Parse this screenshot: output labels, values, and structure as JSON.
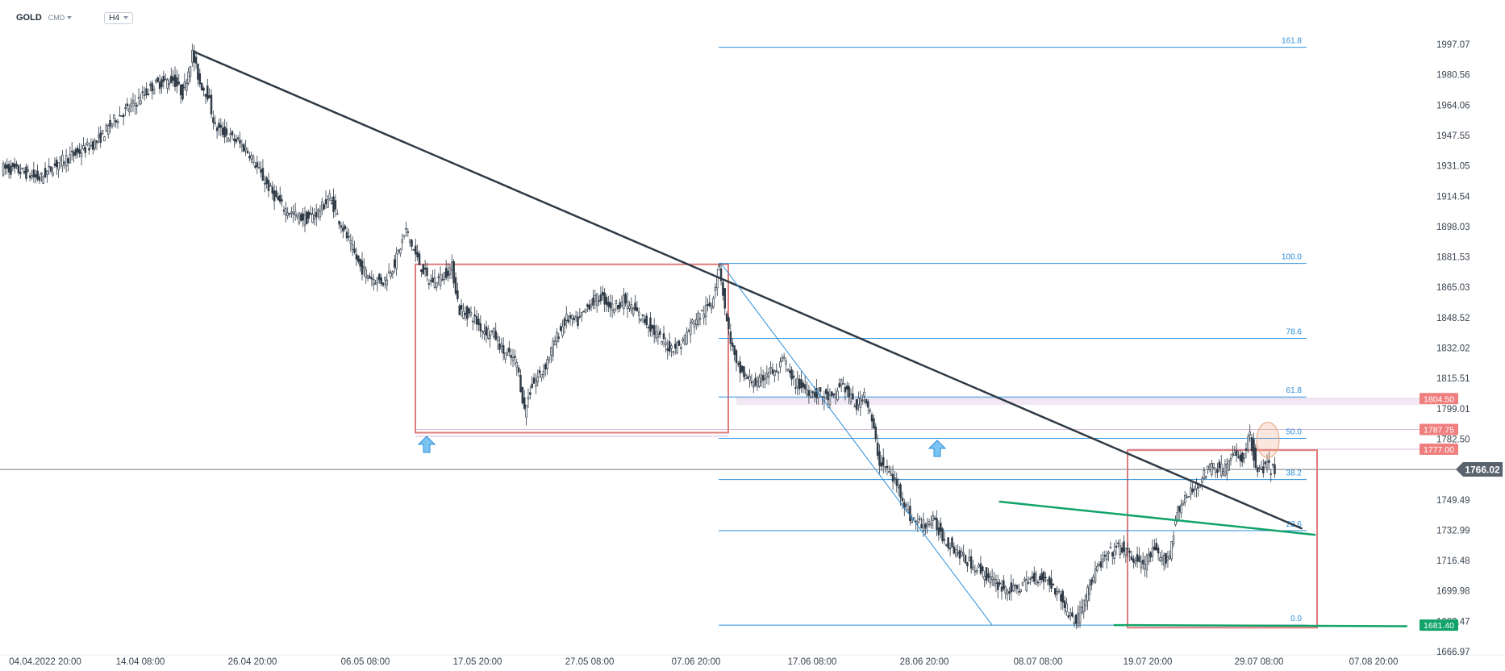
{
  "toolbar": {
    "symbol": "GOLD",
    "exchange": "CMD",
    "timeframe": "H4"
  },
  "colors": {
    "price_line": "#2e3a46",
    "fib": "#2a8fdc",
    "green": "#12a36a",
    "box": "#e07b7b",
    "red_tag": "#ef7f7f",
    "grey_tag": "#59636d",
    "candle": "#2e3a46"
  },
  "chart_data": {
    "type": "candlestick",
    "symbol": "GOLD",
    "timeframe": "H4",
    "ylim": [
      1666.97,
      2013.0
    ],
    "price_ticks": [
      "1997.07",
      "1980.56",
      "1964.06",
      "1947.55",
      "1931.05",
      "1914.54",
      "1898.03",
      "1881.53",
      "1865.03",
      "1848.52",
      "1832.02",
      "1815.51",
      "1799.01",
      "1782.50",
      "1749.49",
      "1732.99",
      "1716.48",
      "1699.98",
      "1683.47",
      "1666.97"
    ],
    "time_ticks": [
      "04.04.2022  20:00",
      "14.04  08:00",
      "26.04  20:00",
      "06.05  08:00",
      "17.05  20:00",
      "27.05  08:00",
      "07.06  20:00",
      "17.06  08:00",
      "28.06  20:00",
      "08.07  08:00",
      "19.07  20:00",
      "29.07  08:00",
      "07.08  20:00"
    ],
    "current_price": "1766.02",
    "price_tags": [
      {
        "label": "1804.50",
        "value": 1804.5,
        "style": "red"
      },
      {
        "label": "1787.75",
        "value": 1787.75,
        "style": "red"
      },
      {
        "label": "1777.00",
        "value": 1777.0,
        "style": "red"
      },
      {
        "label": "1681.40",
        "value": 1681.4,
        "style": "green"
      }
    ],
    "fib_levels": [
      {
        "ratio": "161.8",
        "price": 1995.5
      },
      {
        "ratio": "100.0",
        "price": 1878.0
      },
      {
        "ratio": "78.6",
        "price": 1837.3
      },
      {
        "ratio": "61.8",
        "price": 1805.4
      },
      {
        "ratio": "50.0",
        "price": 1782.9
      },
      {
        "ratio": "38.2",
        "price": 1760.5
      },
      {
        "ratio": "23.6",
        "price": 1732.7
      },
      {
        "ratio": "0.0",
        "price": 1681.4
      }
    ],
    "close_path": [
      [
        0,
        1930
      ],
      [
        10,
        1928
      ],
      [
        20,
        1924
      ],
      [
        30,
        1933
      ],
      [
        40,
        1938
      ],
      [
        50,
        1944
      ],
      [
        60,
        1957
      ],
      [
        70,
        1965
      ],
      [
        80,
        1975
      ],
      [
        90,
        1978
      ],
      [
        95,
        1970
      ],
      [
        100,
        1992
      ],
      [
        104,
        1976
      ],
      [
        108,
        1970
      ],
      [
        112,
        1952
      ],
      [
        118,
        1948
      ],
      [
        124,
        1944
      ],
      [
        130,
        1938
      ],
      [
        136,
        1926
      ],
      [
        142,
        1916
      ],
      [
        148,
        1908
      ],
      [
        154,
        1904
      ],
      [
        160,
        1902
      ],
      [
        166,
        1906
      ],
      [
        172,
        1914
      ],
      [
        176,
        1904
      ],
      [
        182,
        1890
      ],
      [
        188,
        1876
      ],
      [
        194,
        1870
      ],
      [
        200,
        1868
      ],
      [
        206,
        1878
      ],
      [
        212,
        1896
      ],
      [
        218,
        1880
      ],
      [
        224,
        1868
      ],
      [
        230,
        1870
      ],
      [
        236,
        1876
      ],
      [
        240,
        1852
      ],
      [
        246,
        1850
      ],
      [
        252,
        1842
      ],
      [
        258,
        1840
      ],
      [
        263,
        1830
      ],
      [
        270,
        1824
      ],
      [
        274,
        1798
      ],
      [
        278,
        1812
      ],
      [
        284,
        1820
      ],
      [
        290,
        1836
      ],
      [
        296,
        1848
      ],
      [
        302,
        1846
      ],
      [
        308,
        1856
      ],
      [
        314,
        1860
      ],
      [
        320,
        1854
      ],
      [
        326,
        1858
      ],
      [
        332,
        1852
      ],
      [
        338,
        1846
      ],
      [
        344,
        1838
      ],
      [
        350,
        1832
      ],
      [
        356,
        1834
      ],
      [
        362,
        1846
      ],
      [
        368,
        1852
      ],
      [
        372,
        1856
      ],
      [
        376,
        1878
      ],
      [
        380,
        1846
      ],
      [
        385,
        1822
      ],
      [
        390,
        1816
      ],
      [
        396,
        1812
      ],
      [
        402,
        1820
      ],
      [
        406,
        1818
      ],
      [
        410,
        1826
      ],
      [
        414,
        1814
      ],
      [
        418,
        1812
      ],
      [
        424,
        1808
      ],
      [
        430,
        1806
      ],
      [
        436,
        1804
      ],
      [
        440,
        1814
      ],
      [
        444,
        1806
      ],
      [
        448,
        1800
      ],
      [
        452,
        1808
      ],
      [
        456,
        1792
      ],
      [
        460,
        1770
      ],
      [
        464,
        1766
      ],
      [
        470,
        1756
      ],
      [
        476,
        1740
      ],
      [
        482,
        1736
      ],
      [
        488,
        1738
      ],
      [
        494,
        1728
      ],
      [
        500,
        1722
      ],
      [
        506,
        1716
      ],
      [
        512,
        1712
      ],
      [
        518,
        1706
      ],
      [
        524,
        1702
      ],
      [
        530,
        1700
      ],
      [
        536,
        1704
      ],
      [
        542,
        1708
      ],
      [
        548,
        1706
      ],
      [
        554,
        1698
      ],
      [
        558,
        1690
      ],
      [
        563,
        1683
      ],
      [
        568,
        1698
      ],
      [
        574,
        1712
      ],
      [
        580,
        1720
      ],
      [
        586,
        1724
      ],
      [
        592,
        1718
      ],
      [
        598,
        1714
      ],
      [
        604,
        1722
      ],
      [
        608,
        1716
      ],
      [
        612,
        1720
      ],
      [
        616,
        1744
      ],
      [
        622,
        1752
      ],
      [
        628,
        1760
      ],
      [
        634,
        1768
      ],
      [
        640,
        1766
      ],
      [
        646,
        1774
      ],
      [
        650,
        1772
      ],
      [
        654,
        1784
      ],
      [
        658,
        1764
      ],
      [
        662,
        1768
      ],
      [
        666,
        1766
      ]
    ],
    "trendlines": [
      {
        "name": "descending",
        "from": [
          100,
          1993.0
        ],
        "to": [
          680,
          1734.0
        ]
      },
      {
        "name": "fib-diagonal",
        "from": [
          376,
          1878.0
        ],
        "to": [
          518,
          1681.4
        ]
      },
      {
        "name": "green-upper",
        "from": [
          522,
          1748.5
        ],
        "to": [
          687,
          1730.5
        ]
      },
      {
        "name": "green-lower",
        "from": [
          582,
          1681.4
        ],
        "to": [
          735,
          1680.8
        ]
      }
    ]
  }
}
